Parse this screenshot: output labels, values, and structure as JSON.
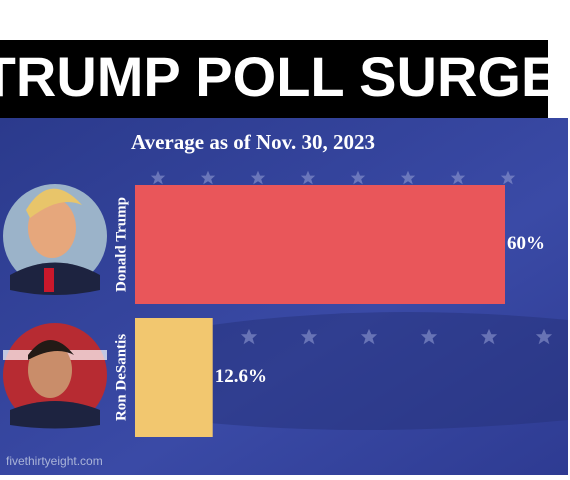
{
  "chart_data": {
    "type": "bar",
    "orientation": "horizontal",
    "title": "TRUMP POLL SURGE",
    "subtitle": "Average as of Nov. 30, 2023",
    "categories": [
      "Donald Trump",
      "Ron DeSantis"
    ],
    "values": [
      60,
      12.6
    ],
    "value_labels": [
      "60%",
      "12.6%"
    ],
    "colors": [
      "#e9565a",
      "#f2c76f"
    ],
    "source": "fivethirtyeight.com"
  }
}
